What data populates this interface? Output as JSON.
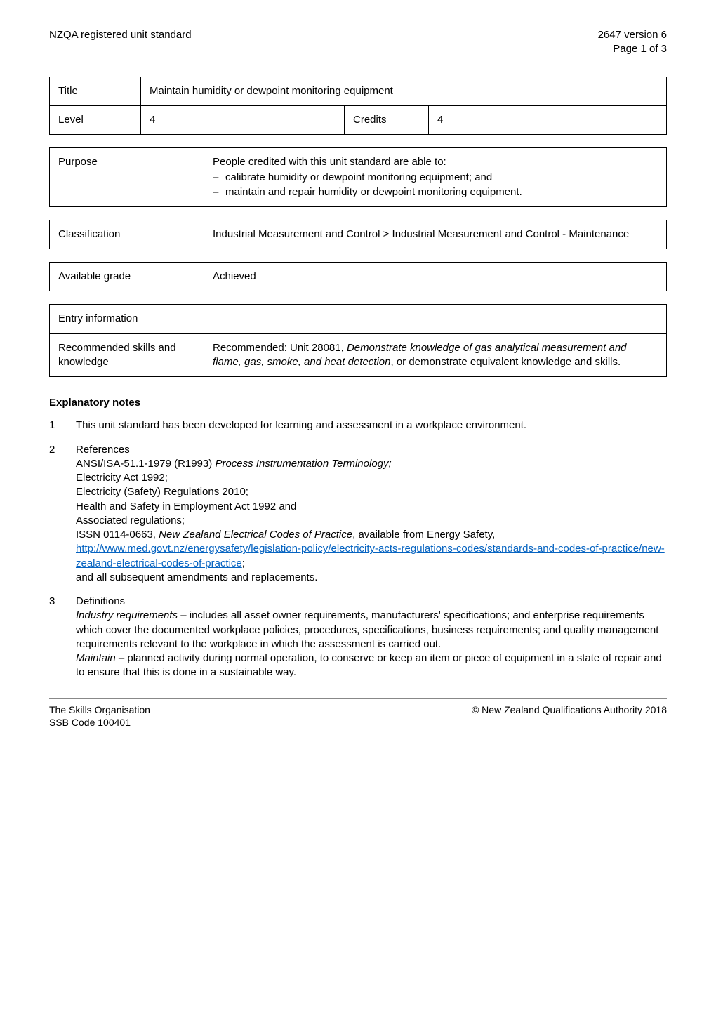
{
  "header": {
    "left": "NZQA registered unit standard",
    "right_line1": "2647 version 6",
    "right_line2": "Page 1 of 3"
  },
  "title_table": {
    "title_label": "Title",
    "title_value": "Maintain humidity or dewpoint monitoring equipment",
    "level_label": "Level",
    "level_value": "4",
    "credits_label": "Credits",
    "credits_value": "4"
  },
  "purpose": {
    "label": "Purpose",
    "intro": "People credited with this unit standard are able to:",
    "bullets": [
      "calibrate humidity or dewpoint monitoring equipment; and",
      "maintain and repair humidity or dewpoint monitoring equipment."
    ]
  },
  "classification": {
    "label": "Classification",
    "value": "Industrial Measurement and Control > Industrial Measurement and Control - Maintenance"
  },
  "available_grade": {
    "label": "Available grade",
    "value": "Achieved"
  },
  "entry_info": {
    "header": "Entry information",
    "rec_label": "Recommended skills and knowledge",
    "rec_value_pre": "Recommended: Unit 28081, ",
    "rec_value_italic": "Demonstrate knowledge of gas analytical measurement and flame, gas, smoke, and heat detection",
    "rec_value_post": ", or demonstrate equivalent knowledge and skills."
  },
  "explanatory": {
    "heading": "Explanatory notes",
    "note1": "This unit standard has been developed for learning and assessment in a workplace environment.",
    "note2": {
      "title": "References",
      "lines": [
        "ANSI/ISA-51.1-1979 (R1993) ",
        "Process Instrumentation Terminology;"
      ],
      "plain": [
        "Electricity Act 1992;",
        "Electricity (Safety) Regulations 2010;",
        "Health and Safety in Employment Act 1992 and",
        "Associated regulations;"
      ],
      "issn_pre": "ISSN 0114-0663, ",
      "issn_italic": "New Zealand Electrical Codes of Practice",
      "issn_post": ", available from Energy Safety, ",
      "link_text": "http://www.med.govt.nz/energysafety/legislation-policy/electricity-acts-regulations-codes/standards-and-codes-of-practice/new-zealand-electrical-codes-of-practice",
      "link_suffix": ";",
      "tail": "and all subsequent amendments and replacements."
    },
    "note3": {
      "title": "Definitions",
      "defs": [
        {
          "term": "Industry requirements",
          "body": " – includes all asset owner requirements, manufacturers' specifications; and enterprise requirements which cover the documented workplace policies, procedures, specifications, business requirements; and quality management requirements relevant to the workplace in which the assessment is carried out."
        },
        {
          "term": "Maintain",
          "body": " – planned activity during normal operation, to conserve or keep an item or piece of equipment in a state of repair and to ensure that this is done in a sustainable way."
        }
      ]
    }
  },
  "footer": {
    "left_line1": "The Skills Organisation",
    "left_line2": "SSB Code 100401",
    "right": "© New Zealand Qualifications Authority 2018"
  }
}
